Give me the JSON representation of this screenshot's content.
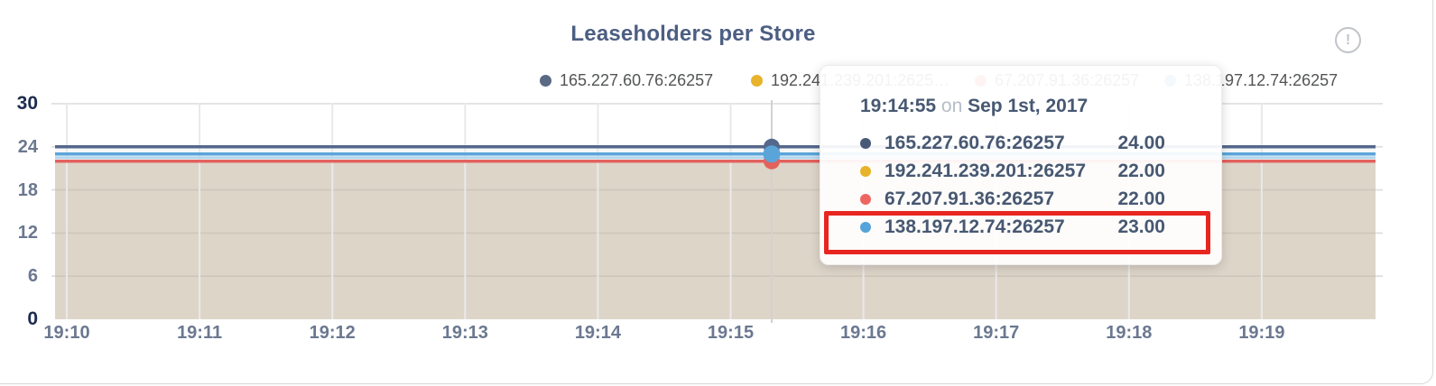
{
  "card": {
    "title": "Leaseholders per Store",
    "warning_icon_glyph": "!"
  },
  "legend": {
    "items": [
      {
        "label": "165.227.60.76:26257",
        "color": "#5a6984"
      },
      {
        "label": "192.241.239.201:2625…",
        "color": "#e7b32a"
      },
      {
        "label": "67.207.91.36:26257",
        "color": "#e2625e"
      },
      {
        "label": "138.197.12.74:26257",
        "color": "#55a3d8"
      }
    ]
  },
  "chart_data": {
    "type": "line",
    "title": "Leaseholders per Store",
    "xlabel": "",
    "ylabel": "",
    "x_ticks": [
      "19:10",
      "19:11",
      "19:12",
      "19:13",
      "19:14",
      "19:15",
      "19:16",
      "19:17",
      "19:18",
      "19:19"
    ],
    "y_ticks": [
      0,
      6,
      12,
      18,
      24,
      30
    ],
    "ylim": [
      0,
      30
    ],
    "grid": true,
    "legend_position": "top",
    "series": [
      {
        "name": "165.227.60.76:26257",
        "color": "#54688c",
        "value": 24,
        "note": "flat line at 24 across full range"
      },
      {
        "name": "192.241.239.201:26257",
        "color": "#e7b32a",
        "value": 22,
        "note": "flat line at 22, hidden beneath red series"
      },
      {
        "name": "67.207.91.36:26257",
        "color": "#e2625e",
        "value": 22,
        "note": "flat line at 22"
      },
      {
        "name": "138.197.12.74:26257",
        "color": "#5ba4d9",
        "value": 23,
        "note": "flat line at 23"
      }
    ],
    "area_fill": {
      "top_value": 22,
      "color": "tan translucent"
    },
    "hover": {
      "time": "19:14:55",
      "marked_values": [
        24,
        23,
        22
      ]
    }
  },
  "tooltip": {
    "time": "19:14:55",
    "on_word": "on",
    "date": "Sep 1st, 2017",
    "rows": [
      {
        "name": "165.227.60.76:26257",
        "value": "24.00",
        "color": "#485a78",
        "highlighted": false
      },
      {
        "name": "192.241.239.201:26257",
        "value": "22.00",
        "color": "#e7b32a",
        "highlighted": false
      },
      {
        "name": "67.207.91.36:26257",
        "value": "22.00",
        "color": "#ed6662",
        "highlighted": false
      },
      {
        "name": "138.197.12.74:26257",
        "value": "23.00",
        "color": "#55a3d8",
        "highlighted": true
      }
    ],
    "highlight_color": "#e8251f"
  }
}
